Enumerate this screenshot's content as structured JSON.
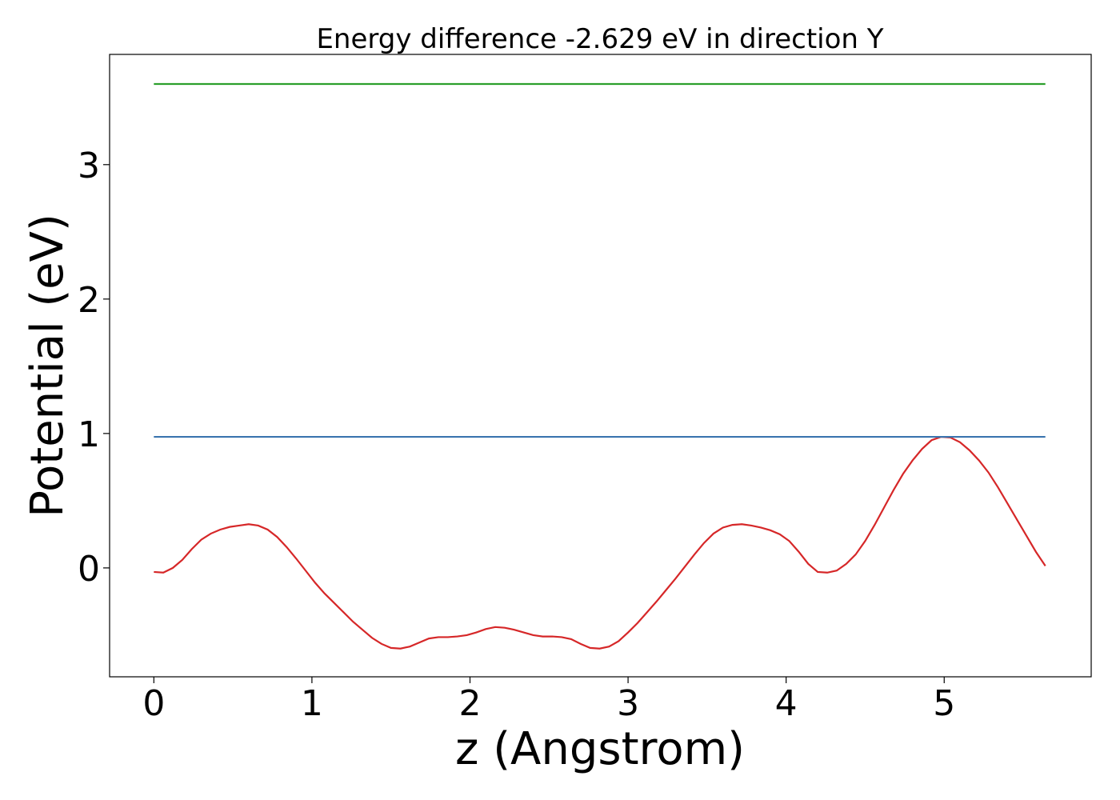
{
  "chart_data": {
    "type": "line",
    "title": "Energy difference -2.629 eV in direction Y",
    "xlabel": "z (Angstrom)",
    "ylabel": "Potential (eV)",
    "xlim": [
      -0.28,
      5.93
    ],
    "ylim": [
      -0.81,
      3.82
    ],
    "xticks": [
      0,
      1,
      2,
      3,
      4,
      5
    ],
    "yticks": [
      0,
      1,
      2,
      3
    ],
    "grid": false,
    "series": [
      {
        "color": "#d62728",
        "x": [
          0.0,
          0.06,
          0.12,
          0.18,
          0.24,
          0.3,
          0.36,
          0.42,
          0.48,
          0.54,
          0.6,
          0.66,
          0.72,
          0.78,
          0.84,
          0.9,
          0.96,
          1.02,
          1.08,
          1.14,
          1.2,
          1.26,
          1.32,
          1.38,
          1.44,
          1.5,
          1.56,
          1.62,
          1.68,
          1.74,
          1.8,
          1.86,
          1.92,
          1.98,
          2.04,
          2.1,
          2.16,
          2.22,
          2.28,
          2.34,
          2.4,
          2.46,
          2.52,
          2.58,
          2.64,
          2.7,
          2.76,
          2.82,
          2.88,
          2.94,
          3.0,
          3.06,
          3.12,
          3.18,
          3.24,
          3.3,
          3.36,
          3.42,
          3.48,
          3.54,
          3.6,
          3.66,
          3.72,
          3.78,
          3.84,
          3.9,
          3.96,
          4.02,
          4.08,
          4.14,
          4.2,
          4.26,
          4.32,
          4.38,
          4.44,
          4.5,
          4.56,
          4.62,
          4.68,
          4.74,
          4.8,
          4.86,
          4.92,
          4.98,
          5.04,
          5.1,
          5.16,
          5.22,
          5.28,
          5.34,
          5.4,
          5.46,
          5.52,
          5.58,
          5.64
        ],
        "y": [
          -0.03,
          -0.035,
          0.0,
          0.06,
          0.14,
          0.21,
          0.255,
          0.285,
          0.305,
          0.315,
          0.325,
          0.315,
          0.285,
          0.23,
          0.155,
          0.07,
          -0.02,
          -0.11,
          -0.19,
          -0.26,
          -0.33,
          -0.4,
          -0.46,
          -0.52,
          -0.565,
          -0.595,
          -0.6,
          -0.585,
          -0.555,
          -0.525,
          -0.515,
          -0.515,
          -0.51,
          -0.5,
          -0.48,
          -0.455,
          -0.44,
          -0.445,
          -0.46,
          -0.48,
          -0.5,
          -0.51,
          -0.51,
          -0.515,
          -0.53,
          -0.565,
          -0.595,
          -0.6,
          -0.585,
          -0.545,
          -0.48,
          -0.41,
          -0.33,
          -0.25,
          -0.165,
          -0.08,
          0.01,
          0.1,
          0.185,
          0.255,
          0.3,
          0.32,
          0.325,
          0.315,
          0.3,
          0.28,
          0.25,
          0.2,
          0.12,
          0.03,
          -0.03,
          -0.035,
          -0.02,
          0.03,
          0.1,
          0.2,
          0.32,
          0.45,
          0.58,
          0.7,
          0.8,
          0.885,
          0.95,
          0.975,
          0.97,
          0.935,
          0.875,
          0.8,
          0.71,
          0.6,
          0.48,
          0.36,
          0.24,
          0.12,
          0.015
        ]
      },
      {
        "color": "#3b75af",
        "x": [
          0.0,
          5.64
        ],
        "y": [
          0.975,
          0.975
        ]
      },
      {
        "color": "#2ca02c",
        "x": [
          0.0,
          5.64
        ],
        "y": [
          3.6,
          3.6
        ]
      }
    ]
  }
}
